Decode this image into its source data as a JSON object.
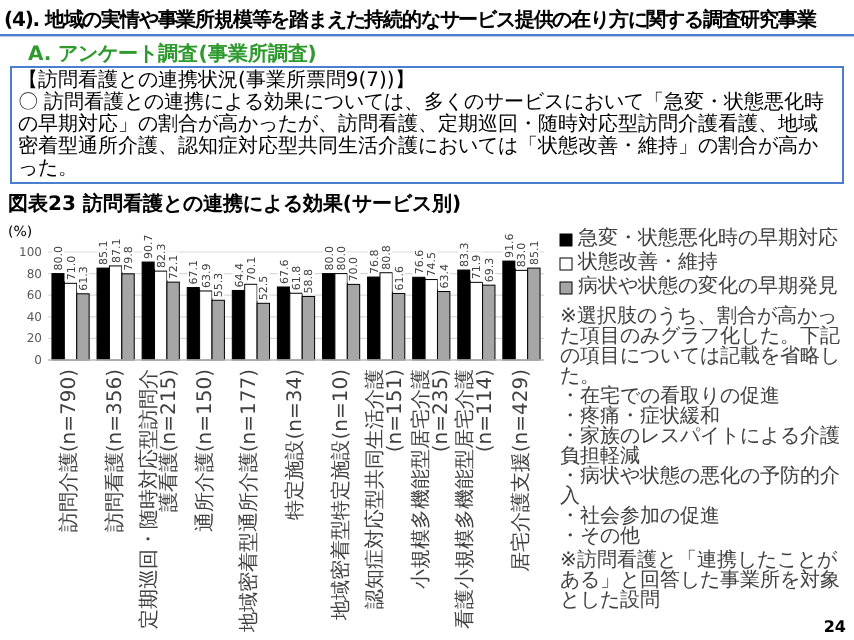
{
  "chart_data": {
    "type": "bar",
    "title": "図表23 訪問看護との連携による効果(サービス別)",
    "ylabel": "(%)",
    "categories": [
      "訪問介護(n=790)",
      "訪問看護(n=356)",
      "定期巡回・随時対応型訪問介護看護(n=215)",
      "通所介護(n=150)",
      "地域密着型通所介護(n=177)",
      "特定施設(n=34)",
      "地域密着型特定施設(n=10)",
      "認知症対応型共同生活介護(n=151)",
      "小規模多機能型居宅介護(n=235)",
      "看護小規模多機能型居宅介護(n=114)",
      "居宅介護支援(n=429)"
    ],
    "series": [
      {
        "name": "急変・状態悪化時の早期対応",
        "color": "#000000",
        "values": [
          80.0,
          85.1,
          90.7,
          67.1,
          64.4,
          67.6,
          80.0,
          76.8,
          76.6,
          83.3,
          91.6
        ],
        "value_labels": [
          "80.0",
          "85.1",
          "90.7",
          "67.1",
          "64.4",
          "67.6",
          "80.0",
          "76.8",
          "76.6",
          "83.3",
          "91.6"
        ]
      },
      {
        "name": "状態改善・維持",
        "color": "#ffffff",
        "values": [
          71.0,
          87.1,
          82.3,
          63.9,
          70.1,
          61.8,
          80.0,
          80.8,
          74.5,
          71.9,
          83.0
        ],
        "value_labels": [
          "71.0",
          "87.1",
          "82.3",
          "63.9",
          "70.1",
          "61.8",
          "80.0",
          "80.8",
          "74.5",
          "71.9",
          "83.0"
        ]
      },
      {
        "name": "病状や状態の変化の早期発見",
        "color": "#a6a6a6",
        "values": [
          61.3,
          79.8,
          72.1,
          55.3,
          52.5,
          58.8,
          70.0,
          61.6,
          63.4,
          69.3,
          85.1
        ],
        "value_labels": [
          "61.3",
          "79.8",
          "72.1",
          "55.3",
          "52.5",
          "58.8",
          "70.0",
          "61.6",
          "63.4",
          "69.3",
          "85.1"
        ]
      }
    ],
    "ylim": [
      0,
      100
    ],
    "yticks": [
      0,
      20,
      40,
      60,
      80,
      100
    ],
    "grid": "y",
    "legend": "right",
    "annotations": [
      "(4). 地域の実情や事業所規模等を踏まえた持続的なサービス提供の在り方に関する調査研究事業",
      "A. アンケート調査(事業所調査)",
      "【訪問看護との連携状況(事業所票問9(7))】",
      "〇 訪問看護との連携による効果については、多くのサービスにおいて「急変・状態悪化時の早期対応」の割合が高かったが、訪問看護、定期巡回・随時対応型訪問介護看護、地域密着型通所介護、認知症対応型共同生活介護においては「状態改善・維持」の割合が高かった。",
      "※選択肢のうち、割合が高かった項目のみグラフ化した。下記の項目については記載を省略した。",
      "・在宅での看取りの促進",
      "・疼痛・症状緩和",
      "・家族のレスパイトによる介護負担軽減",
      "・病状や状態の悪化の予防的介入",
      "・社会参加の促進",
      "・その他",
      "※訪問看護と「連携したことがある」と回答した事業所を対象とした設問",
      "24"
    ]
  }
}
